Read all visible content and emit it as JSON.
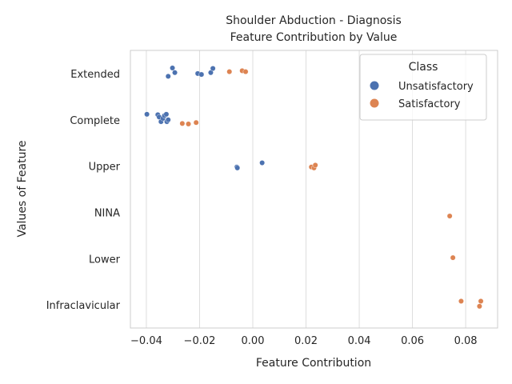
{
  "chart_data": {
    "type": "scatter",
    "title": "Shoulder Abduction - Diagnosis",
    "subtitle": "Feature Contribution by Value",
    "xlabel": "Feature Contribution",
    "ylabel": "Values of Feature",
    "xlim": [
      -0.046,
      0.092
    ],
    "x_ticks": [
      -0.04,
      -0.02,
      0.0,
      0.02,
      0.04,
      0.06,
      0.08
    ],
    "x_tick_labels": [
      "−0.04",
      "−0.02",
      "0.00",
      "0.02",
      "0.04",
      "0.06",
      "0.08"
    ],
    "categories": [
      "Extended",
      "Complete",
      "Upper",
      "NINA",
      "Lower",
      "Infraclavicular"
    ],
    "grid": "vertical",
    "legend": {
      "title": "Class",
      "placement": "top-right",
      "entries": [
        {
          "name": "Unsatisfactory",
          "color": "#4c72b0"
        },
        {
          "name": "Satisfactory",
          "color": "#dd8452"
        }
      ]
    },
    "series": [
      {
        "name": "Unsatisfactory",
        "color": "#4c72b0",
        "points": [
          {
            "category": "Extended",
            "x": -0.0302,
            "jitter": 0.12
          },
          {
            "category": "Extended",
            "x": -0.0293,
            "jitter": 0.02
          },
          {
            "category": "Extended",
            "x": -0.0318,
            "jitter": -0.06
          },
          {
            "category": "Extended",
            "x": -0.0207,
            "jitter": 0.0
          },
          {
            "category": "Extended",
            "x": -0.0193,
            "jitter": -0.02
          },
          {
            "category": "Extended",
            "x": -0.0158,
            "jitter": 0.02
          },
          {
            "category": "Extended",
            "x": -0.015,
            "jitter": 0.11
          },
          {
            "category": "Complete",
            "x": -0.0398,
            "jitter": 0.12
          },
          {
            "category": "Complete",
            "x": -0.0357,
            "jitter": 0.11
          },
          {
            "category": "Complete",
            "x": -0.0352,
            "jitter": 0.06
          },
          {
            "category": "Complete",
            "x": -0.0345,
            "jitter": -0.04
          },
          {
            "category": "Complete",
            "x": -0.0338,
            "jitter": 0.03
          },
          {
            "category": "Complete",
            "x": -0.0332,
            "jitter": 0.09
          },
          {
            "category": "Complete",
            "x": -0.0325,
            "jitter": 0.12
          },
          {
            "category": "Complete",
            "x": -0.0323,
            "jitter": -0.04
          },
          {
            "category": "Complete",
            "x": -0.0318,
            "jitter": 0.0
          },
          {
            "category": "Upper",
            "x": 0.0035,
            "jitter": 0.07
          },
          {
            "category": "Upper",
            "x": -0.006,
            "jitter": -0.02
          },
          {
            "category": "Upper",
            "x": -0.0058,
            "jitter": -0.04
          }
        ]
      },
      {
        "name": "Satisfactory",
        "color": "#dd8452",
        "points": [
          {
            "category": "Extended",
            "x": -0.0088,
            "jitter": 0.04
          },
          {
            "category": "Extended",
            "x": -0.004,
            "jitter": 0.06
          },
          {
            "category": "Extended",
            "x": -0.0027,
            "jitter": 0.04
          },
          {
            "category": "Complete",
            "x": -0.0265,
            "jitter": -0.08
          },
          {
            "category": "Complete",
            "x": -0.0242,
            "jitter": -0.09
          },
          {
            "category": "Complete",
            "x": -0.0213,
            "jitter": -0.06
          },
          {
            "category": "Upper",
            "x": 0.022,
            "jitter": -0.02
          },
          {
            "category": "Upper",
            "x": 0.023,
            "jitter": -0.04
          },
          {
            "category": "Upper",
            "x": 0.0235,
            "jitter": 0.02
          },
          {
            "category": "NINA",
            "x": 0.074,
            "jitter": -0.08
          },
          {
            "category": "Lower",
            "x": 0.0752,
            "jitter": 0.02
          },
          {
            "category": "Infraclavicular",
            "x": 0.0783,
            "jitter": 0.08
          },
          {
            "category": "Infraclavicular",
            "x": 0.0852,
            "jitter": -0.03
          },
          {
            "category": "Infraclavicular",
            "x": 0.0857,
            "jitter": 0.08
          }
        ]
      }
    ]
  }
}
